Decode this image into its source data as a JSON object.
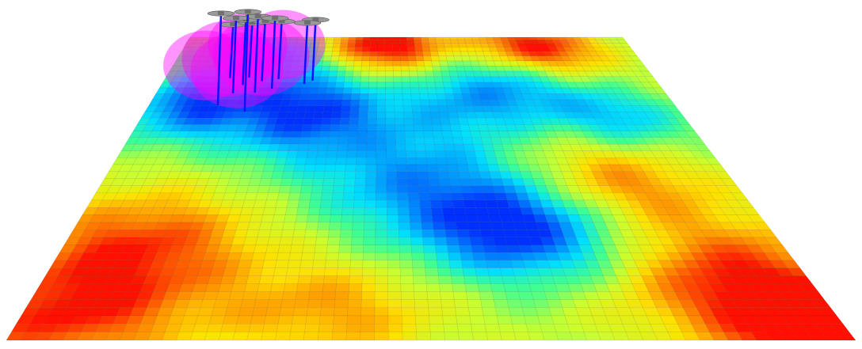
{
  "scene": {
    "type": "3d-heatmap-surface-view",
    "grid": {
      "cols": 60,
      "rows": 46
    },
    "colormap": [
      "#0030ff",
      "#0090ff",
      "#00e0ff",
      "#40ff90",
      "#c8ff30",
      "#ffe000",
      "#ff8000",
      "#ff1000"
    ],
    "coverage_color": "#ff00ff",
    "mast_color": "#1010ff",
    "drone_color": "#707070"
  },
  "field": {
    "base": 0.55,
    "features": [
      {
        "u": 0.45,
        "v": 0.05,
        "amp": 0.55,
        "r": 0.09
      },
      {
        "u": 0.78,
        "v": 0.08,
        "amp": 0.55,
        "r": 0.1
      },
      {
        "u": 0.2,
        "v": 0.1,
        "amp": -0.3,
        "r": 0.08
      },
      {
        "u": 0.3,
        "v": 0.32,
        "amp": -0.55,
        "r": 0.11
      },
      {
        "u": 0.08,
        "v": 0.3,
        "amp": -0.45,
        "r": 0.08
      },
      {
        "u": 0.72,
        "v": 0.22,
        "amp": -0.4,
        "r": 0.1
      },
      {
        "u": 0.58,
        "v": 0.3,
        "amp": -0.2,
        "r": 0.09
      },
      {
        "u": 0.88,
        "v": 0.35,
        "amp": -0.3,
        "r": 0.08
      },
      {
        "u": 0.5,
        "v": 0.55,
        "amp": -0.35,
        "r": 0.12
      },
      {
        "u": 0.64,
        "v": 0.7,
        "amp": -0.55,
        "r": 0.1
      },
      {
        "u": 0.1,
        "v": 0.75,
        "amp": 0.4,
        "r": 0.12
      },
      {
        "u": 0.92,
        "v": 0.85,
        "amp": 0.45,
        "r": 0.12
      },
      {
        "u": 0.82,
        "v": 0.55,
        "amp": 0.3,
        "r": 0.1
      },
      {
        "u": 0.05,
        "v": 0.95,
        "amp": 0.35,
        "r": 0.1
      },
      {
        "u": 0.38,
        "v": 0.92,
        "amp": 0.25,
        "r": 0.1
      },
      {
        "u": 0.98,
        "v": 0.98,
        "amp": 0.4,
        "r": 0.08
      }
    ]
  },
  "drones": [
    {
      "u": 0.11,
      "v": 0.02,
      "h": 0.75
    },
    {
      "u": 0.15,
      "v": 0.01,
      "h": 0.8
    },
    {
      "u": 0.18,
      "v": 0.02,
      "h": 0.85
    },
    {
      "u": 0.215,
      "v": 0.01,
      "h": 0.85
    },
    {
      "u": 0.29,
      "v": 0.01,
      "h": 0.9
    },
    {
      "u": 0.14,
      "v": 0.03,
      "h": 0.9
    },
    {
      "u": 0.17,
      "v": 0.05,
      "h": 1.0
    },
    {
      "u": 0.205,
      "v": 0.04,
      "h": 0.95
    },
    {
      "u": 0.275,
      "v": 0.04,
      "h": 0.8
    },
    {
      "u": 0.125,
      "v": 0.06,
      "h": 0.95
    },
    {
      "u": 0.1,
      "v": 0.09,
      "h": 1.1
    },
    {
      "u": 0.16,
      "v": 0.11,
      "h": 1.15
    }
  ],
  "coverage_zones": [
    {
      "u": 0.14,
      "v": 0.05,
      "r": 0.085
    },
    {
      "u": 0.22,
      "v": 0.05,
      "r": 0.09
    },
    {
      "u": 0.11,
      "v": 0.12,
      "r": 0.09
    },
    {
      "u": 0.18,
      "v": 0.11,
      "r": 0.095
    },
    {
      "u": 0.07,
      "v": 0.15,
      "r": 0.08
    },
    {
      "u": 0.14,
      "v": 0.17,
      "r": 0.085
    }
  ]
}
